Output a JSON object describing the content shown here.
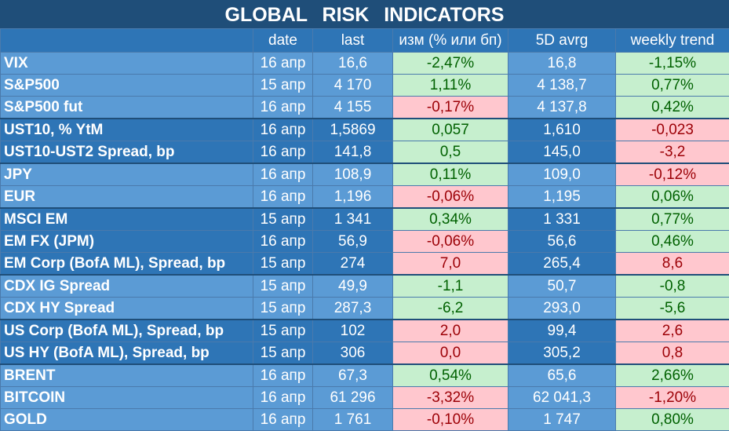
{
  "title": "GLOBAL RISK INDICATORS",
  "headers": {
    "name": "",
    "date": "date",
    "last": "last",
    "chg": "изм (% или бп)",
    "avrg": "5D avrg",
    "trend": "weekly trend"
  },
  "colors": {
    "header": "#1f4e79",
    "blue_dark": "#2e75b6",
    "blue_light": "#5b9bd5",
    "green_fill": "#c6efce",
    "green_text": "#006100",
    "red_fill": "#ffc7ce",
    "red_text": "#9c0006"
  },
  "rows": [
    {
      "name": "VIX",
      "date": "16 апр",
      "last": "16,6",
      "chg": "-2,47%",
      "chg_state": "pos",
      "avrg": "16,8",
      "trend": "-1,15%",
      "trend_state": "pos",
      "group": "light"
    },
    {
      "name": "S&P500",
      "date": "15 апр",
      "last": "4 170",
      "chg": "1,11%",
      "chg_state": "pos",
      "avrg": "4 138,7",
      "trend": "0,77%",
      "trend_state": "pos",
      "group": "light"
    },
    {
      "name": "S&P500 fut",
      "date": "16 апр",
      "last": "4 155",
      "chg": "-0,17%",
      "chg_state": "neg",
      "avrg": "4 137,8",
      "trend": "0,42%",
      "trend_state": "pos",
      "group": "light"
    },
    {
      "name": "UST10, % YtM",
      "date": "16 апр",
      "last": "1,5869",
      "chg": "0,057",
      "chg_state": "pos",
      "avrg": "1,610",
      "trend": "-0,023",
      "trend_state": "neg",
      "group": "dark"
    },
    {
      "name": "UST10-UST2 Spread, bp",
      "date": "16 апр",
      "last": "141,8",
      "chg": "0,5",
      "chg_state": "pos",
      "avrg": "145,0",
      "trend": "-3,2",
      "trend_state": "neg",
      "group": "dark"
    },
    {
      "name": "JPY",
      "date": "16 апр",
      "last": "108,9",
      "chg": "0,11%",
      "chg_state": "pos",
      "avrg": "109,0",
      "trend": "-0,12%",
      "trend_state": "neg",
      "group": "light"
    },
    {
      "name": "EUR",
      "date": "16 апр",
      "last": "1,196",
      "chg": "-0,06%",
      "chg_state": "neg",
      "avrg": "1,195",
      "trend": "0,06%",
      "trend_state": "pos",
      "group": "light"
    },
    {
      "name": "MSCI EM",
      "date": "15 апр",
      "last": "1 341",
      "chg": "0,34%",
      "chg_state": "pos",
      "avrg": "1 331",
      "trend": "0,77%",
      "trend_state": "pos",
      "group": "dark"
    },
    {
      "name": "EM FX (JPM)",
      "date": "16 апр",
      "last": "56,9",
      "chg": "-0,06%",
      "chg_state": "neg",
      "avrg": "56,6",
      "trend": "0,46%",
      "trend_state": "pos",
      "group": "dark"
    },
    {
      "name": "EM Corp (BofA ML), Spread, bp",
      "date": "15 апр",
      "last": "274",
      "chg": "7,0",
      "chg_state": "neg",
      "avrg": "265,4",
      "trend": "8,6",
      "trend_state": "neg",
      "group": "dark"
    },
    {
      "name": "CDX IG Spread",
      "date": "15 апр",
      "last": "49,9",
      "chg": "-1,1",
      "chg_state": "pos",
      "avrg": "50,7",
      "trend": "-0,8",
      "trend_state": "pos",
      "group": "light"
    },
    {
      "name": "CDX HY Spread",
      "date": "15 апр",
      "last": "287,3",
      "chg": "-6,2",
      "chg_state": "pos",
      "avrg": "293,0",
      "trend": "-5,6",
      "trend_state": "pos",
      "group": "light"
    },
    {
      "name": "US Corp (BofA ML), Spread, bp",
      "date": "15 апр",
      "last": "102",
      "chg": "2,0",
      "chg_state": "neg",
      "avrg": "99,4",
      "trend": "2,6",
      "trend_state": "neg",
      "group": "dark"
    },
    {
      "name": "US HY (BofA ML), Spread, bp",
      "date": "15 апр",
      "last": "306",
      "chg": "0,0",
      "chg_state": "neg",
      "avrg": "305,2",
      "trend": "0,8",
      "trend_state": "neg",
      "group": "dark"
    },
    {
      "name": "BRENT",
      "date": "16 апр",
      "last": "67,3",
      "chg": "0,54%",
      "chg_state": "pos",
      "avrg": "65,6",
      "trend": "2,66%",
      "trend_state": "pos",
      "group": "light"
    },
    {
      "name": "BITCOIN",
      "date": "16 апр",
      "last": "61 296",
      "chg": "-3,32%",
      "chg_state": "neg",
      "avrg": "62 041,3",
      "trend": "-1,20%",
      "trend_state": "neg",
      "group": "light"
    },
    {
      "name": "GOLD",
      "date": "16 апр",
      "last": "1 761",
      "chg": "-0,10%",
      "chg_state": "neg",
      "avrg": "1 747",
      "trend": "0,80%",
      "trend_state": "pos",
      "group": "light"
    }
  ]
}
